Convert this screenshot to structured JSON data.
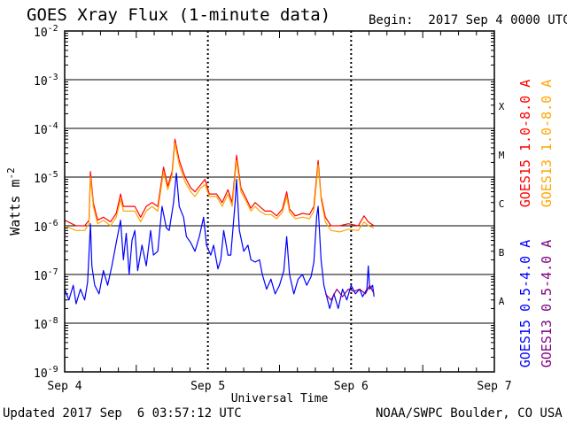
{
  "header": {
    "title": "GOES Xray Flux (1-minute data)",
    "begin": "Begin:  2017 Sep 4 0000 UTC"
  },
  "footer": {
    "updated": "Updated 2017 Sep  6 03:57:12 UTC",
    "credit": "NOAA/SWPC Boulder, CO USA"
  },
  "chart_data": {
    "type": "line",
    "title": "GOES Xray Flux (1-minute data)",
    "xlabel": "Universal Time",
    "ylabel": "Watts m",
    "ylabel_superscript": "-2",
    "y_scale": "log",
    "ylim": [
      1e-09,
      0.01
    ],
    "y_ticks": [
      {
        "base": "10",
        "exp": "-9",
        "value": 1e-09
      },
      {
        "base": "10",
        "exp": "-8",
        "value": 1e-08
      },
      {
        "base": "10",
        "exp": "-7",
        "value": 1e-07
      },
      {
        "base": "10",
        "exp": "-6",
        "value": 1e-06
      },
      {
        "base": "10",
        "exp": "-5",
        "value": 1e-05
      },
      {
        "base": "10",
        "exp": "-4",
        "value": 0.0001
      },
      {
        "base": "10",
        "exp": "-3",
        "value": 0.001
      },
      {
        "base": "10",
        "exp": "-2",
        "value": 0.01
      }
    ],
    "x_ticks": [
      "Sep 4",
      "Sep 5",
      "Sep 6",
      "Sep 7"
    ],
    "xlim_days": [
      0,
      3
    ],
    "grid": "horizontal lines at each decade; dotted vertical lines at day boundaries",
    "flare_classes": [
      {
        "label": "A",
        "value": 3e-08
      },
      {
        "label": "B",
        "value": 3e-07
      },
      {
        "label": "C",
        "value": 3e-06
      },
      {
        "label": "M",
        "value": 3e-05
      },
      {
        "label": "X",
        "value": 0.0003
      }
    ],
    "series": [
      {
        "name": "GOES15 1.0-8.0 A",
        "color": "#ff0000",
        "points": [
          [
            0.0,
            1.3e-06
          ],
          [
            0.08,
            1e-06
          ],
          [
            0.14,
            1e-06
          ],
          [
            0.17,
            1.3e-06
          ],
          [
            0.18,
            1.3e-05
          ],
          [
            0.2,
            3e-06
          ],
          [
            0.23,
            1.3e-06
          ],
          [
            0.27,
            1.5e-06
          ],
          [
            0.32,
            1.2e-06
          ],
          [
            0.36,
            1.8e-06
          ],
          [
            0.39,
            4.5e-06
          ],
          [
            0.41,
            2.5e-06
          ],
          [
            0.45,
            2.5e-06
          ],
          [
            0.49,
            2.5e-06
          ],
          [
            0.53,
            1.5e-06
          ],
          [
            0.57,
            2.5e-06
          ],
          [
            0.61,
            3e-06
          ],
          [
            0.65,
            2.5e-06
          ],
          [
            0.69,
            1.6e-05
          ],
          [
            0.72,
            6.5e-06
          ],
          [
            0.75,
            1.3e-05
          ],
          [
            0.77,
            6e-05
          ],
          [
            0.8,
            2.2e-05
          ],
          [
            0.84,
            1e-05
          ],
          [
            0.88,
            6e-06
          ],
          [
            0.91,
            5e-06
          ],
          [
            0.95,
            7e-06
          ],
          [
            0.98,
            9e-06
          ],
          [
            1.01,
            4.5e-06
          ],
          [
            1.06,
            4.5e-06
          ],
          [
            1.1,
            3e-06
          ],
          [
            1.14,
            5.5e-06
          ],
          [
            1.17,
            3e-06
          ],
          [
            1.2,
            2.8e-05
          ],
          [
            1.23,
            6e-06
          ],
          [
            1.26,
            4e-06
          ],
          [
            1.3,
            2.3e-06
          ],
          [
            1.33,
            3e-06
          ],
          [
            1.36,
            2.5e-06
          ],
          [
            1.4,
            2e-06
          ],
          [
            1.44,
            2e-06
          ],
          [
            1.48,
            1.6e-06
          ],
          [
            1.52,
            2.2e-06
          ],
          [
            1.55,
            5e-06
          ],
          [
            1.57,
            2.2e-06
          ],
          [
            1.61,
            1.6e-06
          ],
          [
            1.66,
            1.8e-06
          ],
          [
            1.71,
            1.7e-06
          ],
          [
            1.74,
            2.5e-06
          ],
          [
            1.77,
            2.2e-05
          ],
          [
            1.79,
            4e-06
          ],
          [
            1.82,
            1.5e-06
          ],
          [
            1.86,
            1e-06
          ],
          [
            1.92,
            1e-06
          ],
          [
            1.98,
            1.1e-06
          ],
          [
            2.05,
            1e-06
          ],
          [
            2.09,
            1.6e-06
          ],
          [
            2.12,
            1.2e-06
          ],
          [
            2.16,
            1e-06
          ]
        ]
      },
      {
        "name": "GOES13 1.0-8.0 A",
        "color": "#ffa500",
        "points": [
          [
            0.0,
            1e-06
          ],
          [
            0.08,
            8e-07
          ],
          [
            0.14,
            8e-07
          ],
          [
            0.17,
            1.1e-06
          ],
          [
            0.18,
            1e-05
          ],
          [
            0.2,
            2.5e-06
          ],
          [
            0.23,
            1.1e-06
          ],
          [
            0.27,
            1.3e-06
          ],
          [
            0.32,
            1e-06
          ],
          [
            0.36,
            1.5e-06
          ],
          [
            0.39,
            3.5e-06
          ],
          [
            0.41,
            2e-06
          ],
          [
            0.45,
            2e-06
          ],
          [
            0.49,
            2e-06
          ],
          [
            0.53,
            1.2e-06
          ],
          [
            0.57,
            2e-06
          ],
          [
            0.61,
            2.5e-06
          ],
          [
            0.65,
            2e-06
          ],
          [
            0.69,
            1.3e-05
          ],
          [
            0.72,
            5.5e-06
          ],
          [
            0.75,
            1.1e-05
          ],
          [
            0.77,
            5e-05
          ],
          [
            0.8,
            1.8e-05
          ],
          [
            0.84,
            8e-06
          ],
          [
            0.88,
            5e-06
          ],
          [
            0.91,
            4e-06
          ],
          [
            0.95,
            6e-06
          ],
          [
            0.98,
            7e-06
          ],
          [
            1.01,
            4e-06
          ],
          [
            1.06,
            4e-06
          ],
          [
            1.1,
            2.5e-06
          ],
          [
            1.14,
            4.5e-06
          ],
          [
            1.17,
            2.5e-06
          ],
          [
            1.2,
            2.2e-05
          ],
          [
            1.23,
            5e-06
          ],
          [
            1.26,
            3.5e-06
          ],
          [
            1.3,
            2e-06
          ],
          [
            1.33,
            2.5e-06
          ],
          [
            1.36,
            2e-06
          ],
          [
            1.4,
            1.7e-06
          ],
          [
            1.44,
            1.7e-06
          ],
          [
            1.48,
            1.4e-06
          ],
          [
            1.52,
            1.9e-06
          ],
          [
            1.55,
            4e-06
          ],
          [
            1.57,
            1.9e-06
          ],
          [
            1.61,
            1.4e-06
          ],
          [
            1.66,
            1.5e-06
          ],
          [
            1.71,
            1.4e-06
          ],
          [
            1.74,
            2e-06
          ],
          [
            1.77,
            1.8e-05
          ],
          [
            1.79,
            3.5e-06
          ],
          [
            1.82,
            1.2e-06
          ],
          [
            1.86,
            8e-07
          ],
          [
            1.92,
            7.5e-07
          ],
          [
            1.98,
            8.5e-07
          ],
          [
            2.05,
            8e-07
          ],
          [
            2.09,
            1.2e-06
          ],
          [
            2.12,
            1e-06
          ],
          [
            2.16,
            9e-07
          ]
        ]
      },
      {
        "name": "GOES15 0.5-4.0 A",
        "color": "#0000ff",
        "points": [
          [
            0.0,
            5e-08
          ],
          [
            0.03,
            3e-08
          ],
          [
            0.06,
            6e-08
          ],
          [
            0.08,
            2.5e-08
          ],
          [
            0.11,
            5e-08
          ],
          [
            0.14,
            3e-08
          ],
          [
            0.16,
            7e-08
          ],
          [
            0.18,
            1.1e-06
          ],
          [
            0.19,
            1.5e-07
          ],
          [
            0.21,
            6e-08
          ],
          [
            0.24,
            4e-08
          ],
          [
            0.27,
            1.2e-07
          ],
          [
            0.3,
            6e-08
          ],
          [
            0.33,
            1.5e-07
          ],
          [
            0.36,
            4.5e-07
          ],
          [
            0.39,
            1.3e-06
          ],
          [
            0.41,
            2e-07
          ],
          [
            0.43,
            7e-07
          ],
          [
            0.45,
            1e-07
          ],
          [
            0.47,
            5e-07
          ],
          [
            0.49,
            8e-07
          ],
          [
            0.51,
            1.2e-07
          ],
          [
            0.54,
            4e-07
          ],
          [
            0.57,
            1.5e-07
          ],
          [
            0.6,
            8e-07
          ],
          [
            0.62,
            2.5e-07
          ],
          [
            0.65,
            3e-07
          ],
          [
            0.68,
            2.5e-06
          ],
          [
            0.71,
            9e-07
          ],
          [
            0.73,
            8e-07
          ],
          [
            0.76,
            3e-06
          ],
          [
            0.78,
            1.2e-05
          ],
          [
            0.8,
            2.5e-06
          ],
          [
            0.83,
            1.5e-06
          ],
          [
            0.85,
            6e-07
          ],
          [
            0.88,
            4.5e-07
          ],
          [
            0.91,
            3e-07
          ],
          [
            0.94,
            6e-07
          ],
          [
            0.97,
            1.5e-06
          ],
          [
            0.99,
            4e-07
          ],
          [
            1.02,
            2.5e-07
          ],
          [
            1.04,
            4e-07
          ],
          [
            1.07,
            1.3e-07
          ],
          [
            1.09,
            2e-07
          ],
          [
            1.11,
            8e-07
          ],
          [
            1.14,
            2.5e-07
          ],
          [
            1.16,
            2.5e-07
          ],
          [
            1.19,
            3e-06
          ],
          [
            1.2,
            9e-06
          ],
          [
            1.22,
            8e-07
          ],
          [
            1.25,
            3e-07
          ],
          [
            1.28,
            4e-07
          ],
          [
            1.3,
            2e-07
          ],
          [
            1.33,
            1.8e-07
          ],
          [
            1.36,
            2e-07
          ],
          [
            1.38,
            1e-07
          ],
          [
            1.41,
            5e-08
          ],
          [
            1.44,
            8e-08
          ],
          [
            1.47,
            4e-08
          ],
          [
            1.5,
            6e-08
          ],
          [
            1.53,
            1.2e-07
          ],
          [
            1.55,
            6e-07
          ],
          [
            1.57,
            1e-07
          ],
          [
            1.6,
            4e-08
          ],
          [
            1.63,
            8e-08
          ],
          [
            1.66,
            1e-07
          ],
          [
            1.69,
            6e-08
          ],
          [
            1.72,
            9e-08
          ],
          [
            1.74,
            1.8e-07
          ],
          [
            1.76,
            1.6e-06
          ],
          [
            1.77,
            2.5e-06
          ],
          [
            1.79,
            2e-07
          ],
          [
            1.81,
            6e-08
          ],
          [
            1.83,
            3.5e-08
          ],
          [
            1.85,
            2e-08
          ],
          [
            1.88,
            4e-08
          ],
          [
            1.91,
            2e-08
          ],
          [
            1.94,
            5e-08
          ],
          [
            1.97,
            3e-08
          ],
          [
            2.0,
            6e-08
          ],
          [
            2.03,
            4e-08
          ],
          [
            2.06,
            5e-08
          ],
          [
            2.08,
            3.5e-08
          ],
          [
            2.11,
            5e-08
          ],
          [
            2.12,
            1.5e-07
          ],
          [
            2.13,
            5e-08
          ],
          [
            2.15,
            6e-08
          ],
          [
            2.16,
            3.5e-08
          ]
        ]
      },
      {
        "name": "GOES13 0.5-4.0 A",
        "color": "#800080",
        "points": [
          [
            1.82,
            4e-08
          ],
          [
            1.86,
            3e-08
          ],
          [
            1.9,
            5e-08
          ],
          [
            1.94,
            3.5e-08
          ],
          [
            1.98,
            5e-08
          ],
          [
            2.02,
            4.5e-08
          ],
          [
            2.06,
            5e-08
          ],
          [
            2.1,
            4e-08
          ],
          [
            2.13,
            6e-08
          ],
          [
            2.16,
            4e-08
          ]
        ]
      }
    ]
  }
}
